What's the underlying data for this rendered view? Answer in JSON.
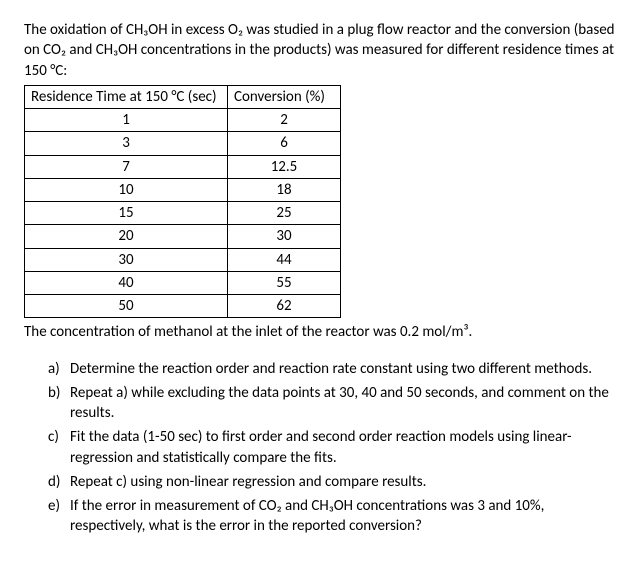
{
  "intro": "The oxidation of CH₃OH in excess O₂ was studied in a plug flow reactor and the conversion (based on CO₂ and CH₃OH concentrations in the products) was measured for different residence times at 150 °C:",
  "table": {
    "headers": [
      "Residence Time at 150 °C (sec)",
      "Conversion (%)"
    ],
    "rows": [
      [
        "1",
        "2"
      ],
      [
        "3",
        "6"
      ],
      [
        "7",
        "12.5"
      ],
      [
        "10",
        "18"
      ],
      [
        "15",
        "25"
      ],
      [
        "20",
        "30"
      ],
      [
        "30",
        "44"
      ],
      [
        "40",
        "55"
      ],
      [
        "50",
        "62"
      ]
    ]
  },
  "afternote": "The concentration of methanol at the inlet of the reactor was 0.2 mol/m³.",
  "questions": {
    "a": "Determine the reaction order and reaction rate constant using two different methods.",
    "b": "Repeat a) while excluding the data points at 30, 40 and 50 seconds, and comment on the results.",
    "c": "Fit the data (1-50 sec) to first order and second order reaction models using linear-regression and statistically compare the fits.",
    "d": "Repeat c) using non-linear regression and compare results.",
    "e": "If the error in measurement of CO₂ and CH₃OH concentrations was 3 and 10%, respectively, what is the error in the reported conversion?"
  }
}
